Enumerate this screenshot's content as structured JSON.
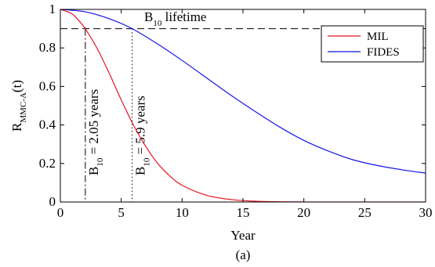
{
  "chart_data": {
    "type": "line",
    "caption": "(a)",
    "xlabel": "Year",
    "ylabel_main": "R",
    "ylabel_sub": "MMC-A",
    "ylabel_arg": "(t)",
    "xlim": [
      0,
      30
    ],
    "ylim": [
      0,
      1
    ],
    "xticks": [
      "0",
      "5",
      "10",
      "15",
      "20",
      "25",
      "30"
    ],
    "yticks": [
      "0",
      "0.2",
      "0.4",
      "0.6",
      "0.8",
      "1"
    ],
    "grid": false,
    "legend_position": "top-right",
    "threshold_y": 0.9,
    "threshold_label_main": "B",
    "threshold_label_sub": "10",
    "threshold_label_rest": " lifetime",
    "markers": [
      {
        "x": 2.05,
        "style": "dash-dot",
        "label_main": "B",
        "label_sub": "10",
        "label_rest": " = 2.05 years"
      },
      {
        "x": 5.9,
        "style": "dotted",
        "label_main": "B",
        "label_sub": "10",
        "label_rest": " = 5.9 years"
      }
    ],
    "series": [
      {
        "name": "MIL",
        "color": "#e8141e",
        "x": [
          0,
          1,
          2,
          2.05,
          3,
          4,
          5,
          6,
          7,
          8,
          9,
          10,
          12,
          14,
          16,
          18,
          20,
          22,
          25,
          30
        ],
        "y": [
          1.0,
          0.975,
          0.905,
          0.9,
          0.8,
          0.67,
          0.53,
          0.4,
          0.29,
          0.2,
          0.135,
          0.087,
          0.035,
          0.013,
          0.004,
          0.0012,
          0.0003,
          0.0001,
          0.0,
          0.0
        ]
      },
      {
        "name": "FIDES",
        "color": "#1414e8",
        "x": [
          0,
          2,
          4,
          5.9,
          8,
          10,
          12,
          14,
          16,
          18,
          20,
          22,
          24,
          26,
          28,
          30
        ],
        "y": [
          1.0,
          0.988,
          0.952,
          0.9,
          0.82,
          0.735,
          0.645,
          0.555,
          0.47,
          0.39,
          0.32,
          0.265,
          0.22,
          0.19,
          0.168,
          0.15
        ]
      }
    ]
  }
}
